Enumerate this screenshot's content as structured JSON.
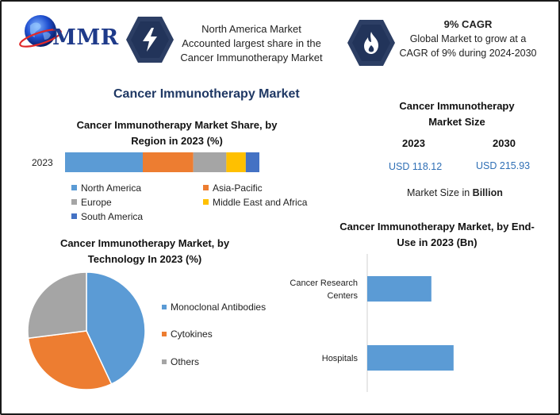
{
  "brand": {
    "logo_text": "MMR"
  },
  "colors": {
    "north_america": "#5b9bd5",
    "asia_pacific": "#ed7d31",
    "europe": "#a5a5a5",
    "mea": "#ffc000",
    "south_america": "#4472c4",
    "accent_blue": "#2f6fb5",
    "dark_navy": "#1f3864"
  },
  "icons": {
    "box1": "lightning-icon",
    "box2": "flame-icon"
  },
  "info_box_1": {
    "line1": "North America Market",
    "line2": "Accounted largest share in the",
    "line3": "Cancer Immunotherapy Market"
  },
  "info_box_2": {
    "heading": "9% CAGR",
    "line1": "Global Market to grow at a",
    "line2": "CAGR of 9% during 2024-2030"
  },
  "main_title": "Cancer Immunotherapy Market",
  "market_size": {
    "title_line1": "Cancer Immunotherapy",
    "title_line2": "Market Size",
    "year_a": "2023",
    "year_b": "2030",
    "value_a": "USD 118.12",
    "value_b": "USD 215.93",
    "unit_prefix": "Market Size in ",
    "unit_bold": "Billion"
  },
  "chart_data": [
    {
      "type": "bar",
      "orientation": "horizontal-stacked",
      "title": "Cancer Immunotherapy Market Share, by Region in 2023 (%)",
      "categories": [
        "2023"
      ],
      "series": [
        {
          "name": "North America",
          "values": [
            40
          ]
        },
        {
          "name": "Asia-Pacific",
          "values": [
            26
          ]
        },
        {
          "name": "Europe",
          "values": [
            17
          ]
        },
        {
          "name": "Middle East and Africa",
          "values": [
            10
          ]
        },
        {
          "name": "South America",
          "values": [
            7
          ]
        }
      ],
      "legend": "bottom"
    },
    {
      "type": "pie",
      "title": "Cancer Immunotherapy Market, by Technology In 2023 (%)",
      "labels": [
        "Monoclonal Antibodies",
        "Cytokines",
        "Others"
      ],
      "values": [
        43,
        30,
        27
      ],
      "legend": "right"
    },
    {
      "type": "bar",
      "orientation": "horizontal",
      "title": "Cancer Immunotherapy Market, by End-Use in 2023 (Bn)",
      "categories": [
        "Cancer Research Centers",
        "Hospitals"
      ],
      "category_lines": [
        [
          "Cancer Research",
          "Centers"
        ],
        [
          "Hospitals"
        ]
      ],
      "values": [
        48.5,
        65.3
      ],
      "xlim": [
        0,
        120
      ],
      "grid": false
    }
  ]
}
